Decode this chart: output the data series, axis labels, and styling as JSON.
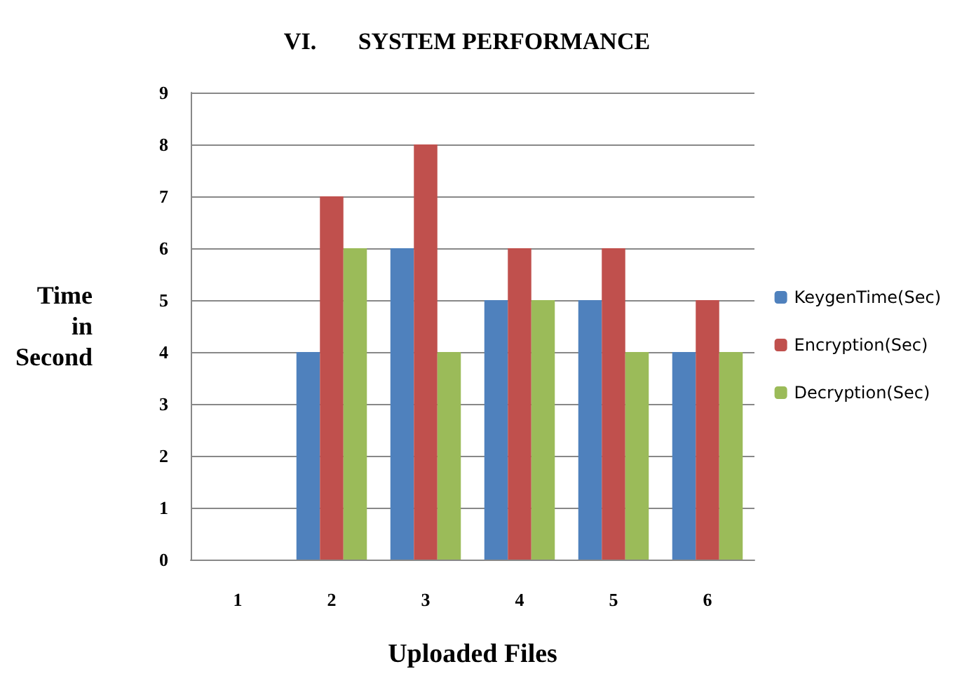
{
  "chart_data": {
    "type": "bar",
    "title": "VI.       SYSTEM PERFORMANCE",
    "xlabel": "Uploaded Files",
    "ylabel": "Time in Second",
    "categories": [
      "1",
      "2",
      "3",
      "4",
      "5",
      "6"
    ],
    "series": [
      {
        "name": "KeygenTime(Sec)",
        "color": "#4f81bd",
        "values": [
          0,
          4,
          6,
          5,
          5,
          4
        ]
      },
      {
        "name": "Encryption(Sec)",
        "color": "#c0504d",
        "values": [
          0,
          7,
          8,
          6,
          6,
          5
        ]
      },
      {
        "name": "Decryption(Sec)",
        "color": "#9bbb59",
        "values": [
          0,
          6,
          4,
          5,
          4,
          4
        ]
      }
    ],
    "ylim": [
      0,
      9
    ],
    "yticks": [
      0,
      1,
      2,
      3,
      4,
      5,
      6,
      7,
      8,
      9
    ],
    "grid": "y",
    "legend": "right"
  }
}
